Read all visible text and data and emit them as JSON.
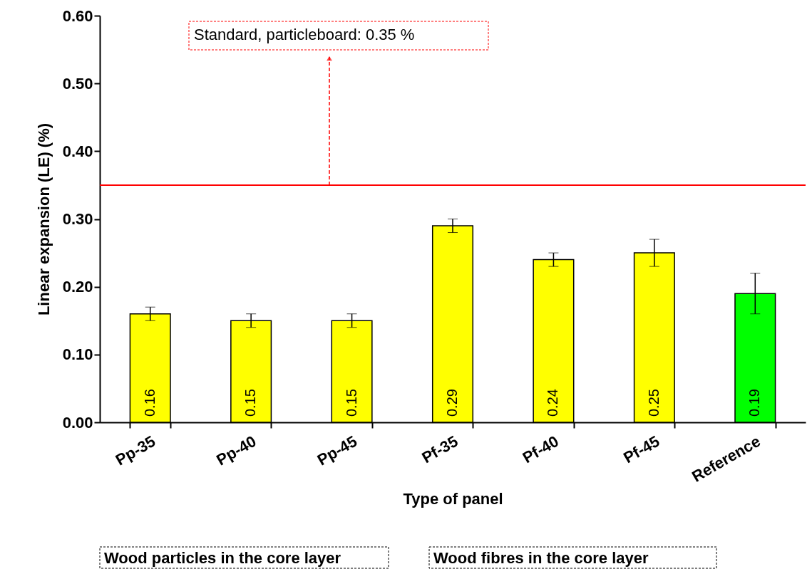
{
  "chart_data": {
    "type": "bar",
    "xlabel": "Type of panel",
    "ylabel": "Linear expansion (LE) (%)",
    "categories": [
      "Pp-35",
      "Pp-40",
      "Pp-45",
      "Pf-35",
      "Pf-40",
      "Pf-45",
      "Reference"
    ],
    "values": [
      0.16,
      0.15,
      0.15,
      0.29,
      0.24,
      0.25,
      0.19
    ],
    "errors": [
      0.01,
      0.01,
      0.01,
      0.01,
      0.01,
      0.02,
      0.03
    ],
    "colors": [
      "#ffff00",
      "#ffff00",
      "#ffff00",
      "#ffff00",
      "#ffff00",
      "#ffff00",
      "#00ff00"
    ],
    "ylim": [
      0,
      0.6
    ],
    "yticks": [
      {
        "value": 0,
        "label": "0.00"
      },
      {
        "value": 0.1,
        "label": "0.10"
      },
      {
        "value": 0.2,
        "label": "0.20"
      },
      {
        "value": 0.3,
        "label": "0.30"
      },
      {
        "value": 0.4,
        "label": "0.40"
      },
      {
        "value": 0.5,
        "label": "0.50"
      },
      {
        "value": 0.6,
        "label": "0.60"
      }
    ],
    "data_labels": true,
    "grid": false,
    "ref_lines": [
      {
        "axis": "y",
        "value": 0.35,
        "label": "Standard, particleboard: 0.35 %",
        "color": "#ff0000"
      }
    ],
    "annotations": [
      "Wood particles in the core layer",
      "Wood fibres in the core layer"
    ]
  }
}
